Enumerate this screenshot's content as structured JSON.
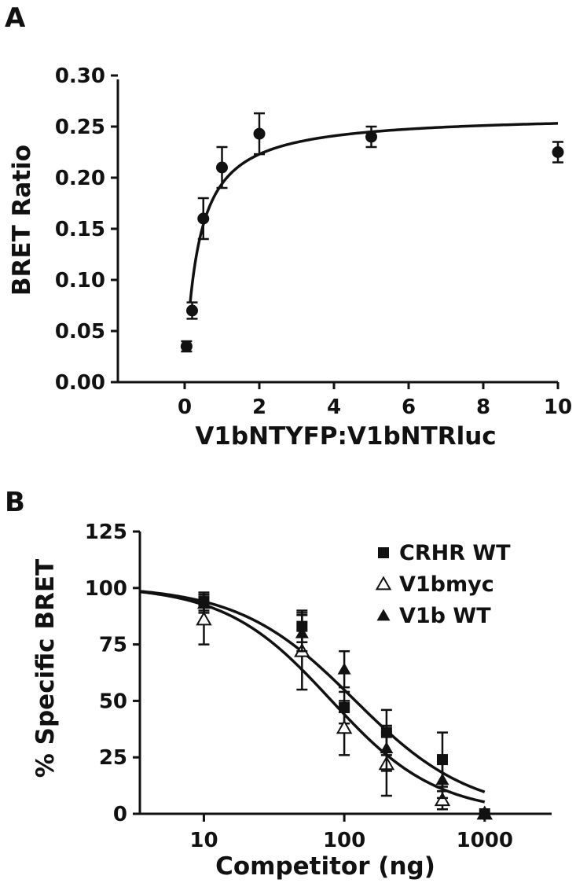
{
  "chart_data": [
    {
      "panel": "A",
      "type": "scatter",
      "xlabel": "V1bNTYFP:V1bNTRluc",
      "ylabel": "BRET Ratio",
      "xlim": [
        -1.5,
        10
      ],
      "ylim": [
        0.0,
        0.3
      ],
      "xticks": [
        "0",
        "2",
        "4",
        "6",
        "8",
        "10"
      ],
      "yticks": [
        "0.00",
        "0.05",
        "0.10",
        "0.15",
        "0.20",
        "0.25",
        "0.30"
      ],
      "series": [
        {
          "points": [
            {
              "x": 0.05,
              "y": 0.035,
              "err": 0.005
            },
            {
              "x": 0.2,
              "y": 0.07,
              "err": 0.008
            },
            {
              "x": 0.5,
              "y": 0.16,
              "err": 0.02
            },
            {
              "x": 1.0,
              "y": 0.21,
              "err": 0.02
            },
            {
              "x": 2.0,
              "y": 0.243,
              "err": 0.02
            },
            {
              "x": 5.0,
              "y": 0.24,
              "err": 0.01
            },
            {
              "x": 10.0,
              "y": 0.225,
              "err": 0.01
            }
          ],
          "fit": {
            "model": "hyperbola",
            "bmax": 0.262,
            "k": 0.35,
            "x_range": [
              0.15,
              10
            ]
          }
        }
      ]
    },
    {
      "panel": "B",
      "type": "scatter",
      "xscale": "log",
      "xlabel": "Competitor (ng)",
      "ylabel": "% Specific BRET",
      "xlim": [
        3.5,
        3000
      ],
      "ylim": [
        0,
        125
      ],
      "xticks": [
        "10",
        "100",
        "1000"
      ],
      "yticks": [
        "0",
        "25",
        "50",
        "75",
        "100",
        "125"
      ],
      "legend": "top-right",
      "series": [
        {
          "name": "CRHR WT",
          "marker": "square",
          "points": [
            {
              "x": 10,
              "y": 94,
              "err": 4
            },
            {
              "x": 50,
              "y": 83,
              "err": 7
            },
            {
              "x": 100,
              "y": 47,
              "err": 7
            },
            {
              "x": 200,
              "y": 36,
              "err": 10
            },
            {
              "x": 500,
              "y": 24,
              "err": 12
            },
            {
              "x": 1000,
              "y": 0,
              "err": 0
            }
          ]
        },
        {
          "name": "V1bmyc",
          "marker": "open-triangle",
          "points": [
            {
              "x": 10,
              "y": 86,
              "err": 11
            },
            {
              "x": 50,
              "y": 72,
              "err": 17
            },
            {
              "x": 100,
              "y": 38,
              "err": 12
            },
            {
              "x": 200,
              "y": 22,
              "err": 14
            },
            {
              "x": 500,
              "y": 6,
              "err": 4
            },
            {
              "x": 1000,
              "y": 0,
              "err": 0
            }
          ]
        },
        {
          "name": "V1b WT",
          "marker": "filled-triangle",
          "points": [
            {
              "x": 10,
              "y": 93,
              "err": 4
            },
            {
              "x": 50,
              "y": 80,
              "err": 8
            },
            {
              "x": 100,
              "y": 64,
              "err": 8
            },
            {
              "x": 200,
              "y": 29,
              "err": 10
            },
            {
              "x": 500,
              "y": 15,
              "err": 8
            },
            {
              "x": 1000,
              "y": 0,
              "err": 0
            }
          ]
        }
      ],
      "fits": [
        {
          "model": "one-site-competition",
          "top": 101,
          "ic50": 118,
          "hill": 1.05,
          "x_range": [
            3.5,
            1000
          ]
        },
        {
          "model": "one-site-competition",
          "top": 101,
          "ic50": 80,
          "hill": 1.15,
          "x_range": [
            3.5,
            1000
          ]
        }
      ]
    }
  ],
  "panels": {
    "A": {
      "letter": "A"
    },
    "B": {
      "letter": "B"
    }
  }
}
